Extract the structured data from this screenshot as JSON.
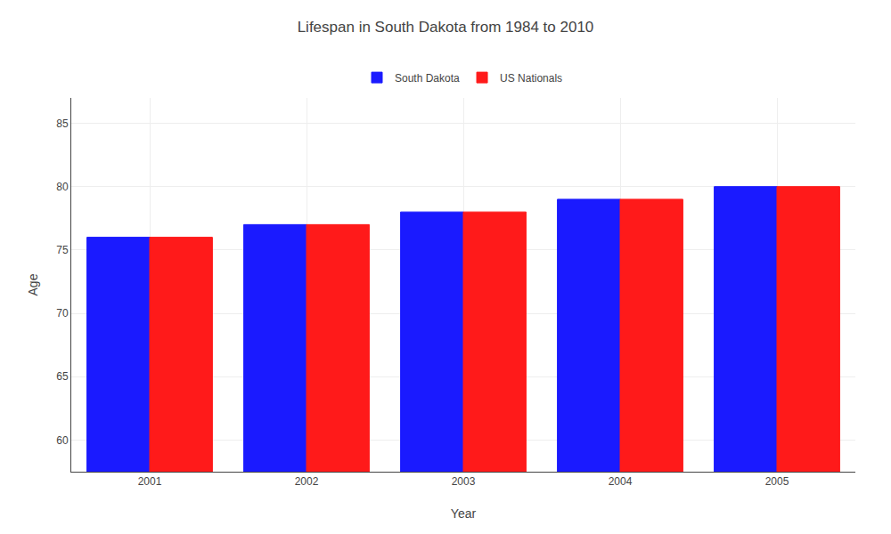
{
  "chart_data": {
    "type": "bar",
    "title": "Lifespan in South Dakota from 1984 to 2010",
    "xlabel": "Year",
    "ylabel": "Age",
    "categories": [
      "2001",
      "2002",
      "2003",
      "2004",
      "2005"
    ],
    "series": [
      {
        "name": "South Dakota",
        "color": "#1a1aff",
        "values": [
          76.0,
          77.0,
          78.0,
          79.0,
          80.0
        ]
      },
      {
        "name": "US Nationals",
        "color": "#ff1a1a",
        "values": [
          76.0,
          77.0,
          78.0,
          79.0,
          80.0
        ]
      }
    ],
    "ylim": [
      57.5,
      87
    ],
    "yticks": [
      60,
      65,
      70,
      75,
      80,
      85
    ],
    "grid": true,
    "legend": "top"
  }
}
